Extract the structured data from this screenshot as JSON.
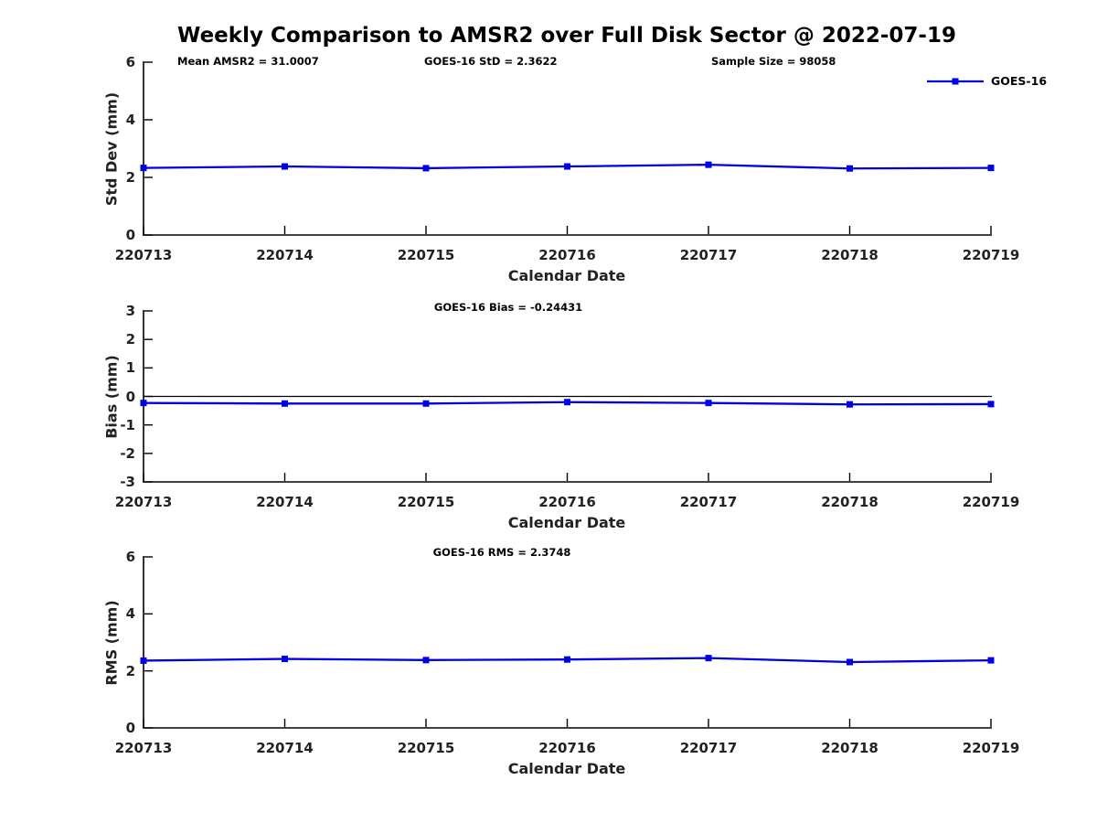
{
  "page_title": "Weekly Comparison to AMSR2 over Full Disk Sector @ 2022-07-19",
  "colors": {
    "series": "#0000E6",
    "axis": "#000000",
    "zero_line": "#000000"
  },
  "chart_data": [
    {
      "type": "line",
      "name": "std-dev-panel",
      "categories": [
        "220713",
        "220714",
        "220715",
        "220716",
        "220717",
        "220718",
        "220719"
      ],
      "series": [
        {
          "name": "GOES-16",
          "values": [
            2.33,
            2.38,
            2.32,
            2.38,
            2.44,
            2.31,
            2.33
          ]
        }
      ],
      "ylabel": "Std Dev (mm)",
      "xlabel": "Calendar Date",
      "ylim": [
        0,
        6
      ],
      "yticks": [
        0,
        2,
        4,
        6
      ],
      "zero_line": false,
      "grid": false,
      "legend": [
        "GOES-16"
      ],
      "legend_position": "top-right-outside",
      "annotations": [
        "Mean AMSR2 = 31.0007",
        "GOES-16 StD = 2.3622",
        "Sample Size = 98058"
      ]
    },
    {
      "type": "line",
      "name": "bias-panel",
      "categories": [
        "220713",
        "220714",
        "220715",
        "220716",
        "220717",
        "220718",
        "220719"
      ],
      "series": [
        {
          "name": "GOES-16",
          "values": [
            -0.23,
            -0.25,
            -0.25,
            -0.2,
            -0.23,
            -0.28,
            -0.27
          ]
        }
      ],
      "ylabel": "Bias (mm)",
      "xlabel": "Calendar Date",
      "ylim": [
        -3,
        3
      ],
      "yticks": [
        3,
        2,
        1,
        0,
        -1,
        -2,
        -3
      ],
      "zero_line": true,
      "grid": false,
      "annotations": [
        "GOES-16 Bias  = -0.24431"
      ]
    },
    {
      "type": "line",
      "name": "rms-panel",
      "categories": [
        "220713",
        "220714",
        "220715",
        "220716",
        "220717",
        "220718",
        "220719"
      ],
      "series": [
        {
          "name": "GOES-16",
          "values": [
            2.36,
            2.42,
            2.38,
            2.4,
            2.45,
            2.31,
            2.37
          ]
        }
      ],
      "ylabel": "RMS (mm)",
      "xlabel": "Calendar Date",
      "ylim": [
        0,
        6
      ],
      "yticks": [
        0,
        2,
        4,
        6
      ],
      "zero_line": false,
      "grid": false,
      "annotations": [
        "GOES-16 RMS = 2.3748"
      ]
    }
  ]
}
